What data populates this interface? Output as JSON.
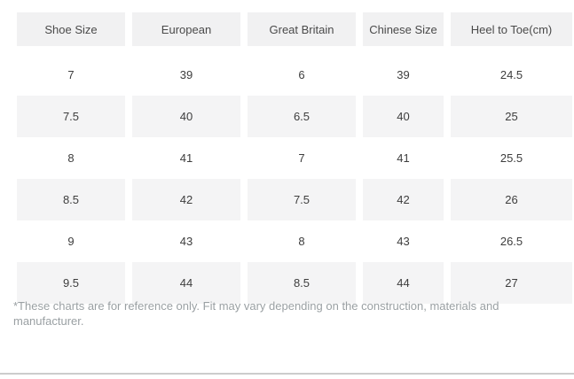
{
  "colors": {
    "header_bg": "#f1f1f2",
    "row_alt_bg": "#f4f4f5",
    "header_text": "#4a4a4a",
    "cell_text": "#3d3d3d",
    "footnote_text": "#9aa0a3",
    "divider": "#cccccc"
  },
  "size_chart": {
    "columns": [
      "Shoe Size",
      "European",
      "Great Britain",
      "Chinese Size",
      "Heel to Toe(cm)"
    ],
    "rows": [
      [
        "7",
        "39",
        "6",
        "39",
        "24.5"
      ],
      [
        "7.5",
        "40",
        "6.5",
        "40",
        "25"
      ],
      [
        "8",
        "41",
        "7",
        "41",
        "25.5"
      ],
      [
        "8.5",
        "42",
        "7.5",
        "42",
        "26"
      ],
      [
        "9",
        "43",
        "8",
        "43",
        "26.5"
      ],
      [
        "9.5",
        "44",
        "8.5",
        "44",
        "27"
      ]
    ]
  },
  "footnote": "*These charts are for reference only. Fit may vary depending on the construction, materials and manufacturer."
}
